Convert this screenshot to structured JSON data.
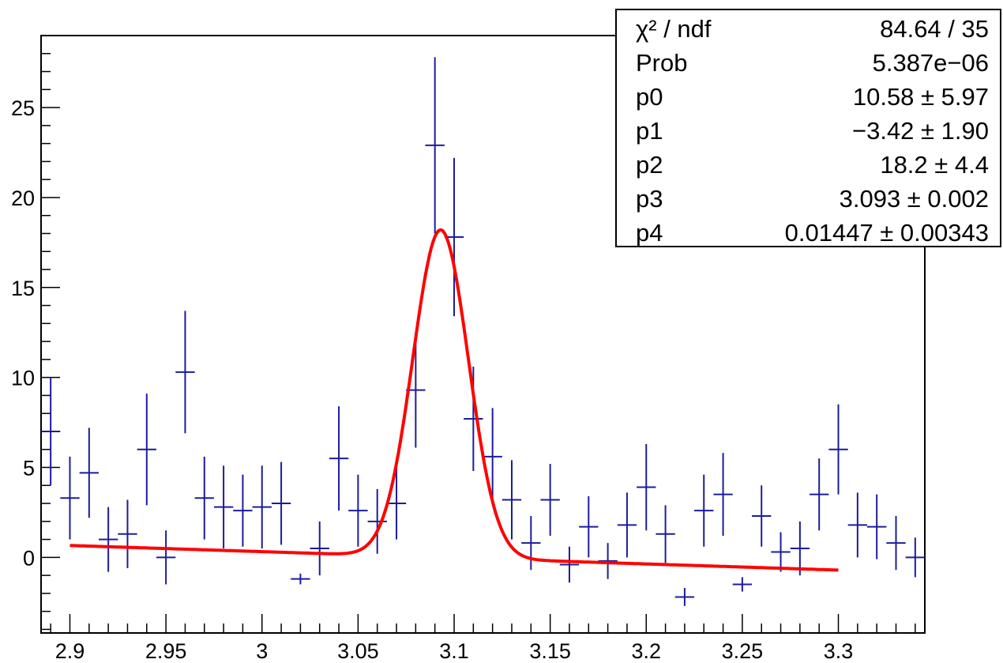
{
  "chart_data": {
    "type": "scatter",
    "title": "",
    "xlabel": "",
    "ylabel": "",
    "xlim": [
      2.885,
      3.345
    ],
    "ylim": [
      -4.2,
      29
    ],
    "x_ticks": [
      "2.9",
      "2.95",
      "3",
      "3.05",
      "3.1",
      "3.15",
      "3.2",
      "3.25",
      "3.3"
    ],
    "x_tick_values": [
      2.9,
      2.95,
      3.0,
      3.05,
      3.1,
      3.15,
      3.2,
      3.25,
      3.3
    ],
    "y_ticks": [
      "0",
      "5",
      "10",
      "15",
      "20",
      "25"
    ],
    "y_tick_values": [
      0,
      5,
      10,
      15,
      20,
      25
    ],
    "series": [
      {
        "kind": "data-with-errors",
        "color": "#1c1c9c",
        "bin_width": 0.01,
        "points": [
          {
            "x": 2.89,
            "y": 7.0,
            "err": 3.0
          },
          {
            "x": 2.9,
            "y": 3.3,
            "err": 2.3
          },
          {
            "x": 2.91,
            "y": 4.7,
            "err": 2.5
          },
          {
            "x": 2.92,
            "y": 1.0,
            "err": 1.8
          },
          {
            "x": 2.93,
            "y": 1.3,
            "err": 1.9
          },
          {
            "x": 2.94,
            "y": 6.0,
            "err": 3.1
          },
          {
            "x": 2.95,
            "y": 0.0,
            "err": 1.5
          },
          {
            "x": 2.96,
            "y": 10.3,
            "err": 3.4
          },
          {
            "x": 2.97,
            "y": 3.3,
            "err": 2.3
          },
          {
            "x": 2.98,
            "y": 2.8,
            "err": 2.3
          },
          {
            "x": 2.99,
            "y": 2.6,
            "err": 2.0
          },
          {
            "x": 3.0,
            "y": 2.8,
            "err": 2.3
          },
          {
            "x": 3.01,
            "y": 3.0,
            "err": 2.3
          },
          {
            "x": 3.02,
            "y": -1.2,
            "err": 0.3
          },
          {
            "x": 3.03,
            "y": 0.5,
            "err": 1.5
          },
          {
            "x": 3.04,
            "y": 5.5,
            "err": 2.9
          },
          {
            "x": 3.05,
            "y": 2.6,
            "err": 2.0
          },
          {
            "x": 3.06,
            "y": 2.0,
            "err": 1.8
          },
          {
            "x": 3.07,
            "y": 3.0,
            "err": 2.0
          },
          {
            "x": 3.08,
            "y": 9.3,
            "err": 3.2
          },
          {
            "x": 3.09,
            "y": 22.9,
            "err": 4.9
          },
          {
            "x": 3.1,
            "y": 17.8,
            "err": 4.4
          },
          {
            "x": 3.11,
            "y": 7.7,
            "err": 2.9
          },
          {
            "x": 3.12,
            "y": 5.6,
            "err": 2.7
          },
          {
            "x": 3.13,
            "y": 3.2,
            "err": 2.2
          },
          {
            "x": 3.14,
            "y": 0.8,
            "err": 1.5
          },
          {
            "x": 3.15,
            "y": 3.2,
            "err": 2.0
          },
          {
            "x": 3.16,
            "y": -0.4,
            "err": 1.0
          },
          {
            "x": 3.17,
            "y": 1.7,
            "err": 1.7
          },
          {
            "x": 3.18,
            "y": -0.2,
            "err": 1.0
          },
          {
            "x": 3.19,
            "y": 1.8,
            "err": 1.8
          },
          {
            "x": 3.2,
            "y": 3.9,
            "err": 2.4
          },
          {
            "x": 3.21,
            "y": 1.3,
            "err": 1.6
          },
          {
            "x": 3.22,
            "y": -2.2,
            "err": 0.5
          },
          {
            "x": 3.23,
            "y": 2.6,
            "err": 2.0
          },
          {
            "x": 3.24,
            "y": 3.5,
            "err": 2.3
          },
          {
            "x": 3.25,
            "y": -1.5,
            "err": 0.4
          },
          {
            "x": 3.26,
            "y": 2.3,
            "err": 1.7
          },
          {
            "x": 3.27,
            "y": 0.3,
            "err": 1.1
          },
          {
            "x": 3.28,
            "y": 0.5,
            "err": 1.5
          },
          {
            "x": 3.29,
            "y": 3.5,
            "err": 2.0
          },
          {
            "x": 3.3,
            "y": 6.0,
            "err": 2.5
          },
          {
            "x": 3.31,
            "y": 1.8,
            "err": 1.8
          },
          {
            "x": 3.32,
            "y": 1.7,
            "err": 1.8
          },
          {
            "x": 3.33,
            "y": 0.8,
            "err": 1.5
          },
          {
            "x": 3.34,
            "y": 0.0,
            "err": 1.1
          }
        ]
      },
      {
        "kind": "fit-line",
        "color": "#ff0000",
        "x_range": [
          2.9,
          3.3
        ],
        "function": "p0 + p1*x + p2*exp(-0.5*((x-p3)/p4)^2)",
        "params": {
          "p0": 10.58,
          "p1": -3.42,
          "p2": 18.2,
          "p3": 3.093,
          "p4": 0.01447
        }
      }
    ],
    "grid": false,
    "stats_box": {
      "position": "top-right",
      "rows": [
        {
          "name": "χ² / ndf",
          "value": "84.64 / 35"
        },
        {
          "name": "Prob",
          "value": "5.387e−06"
        },
        {
          "name": "p0",
          "value": "10.58 ± 5.97"
        },
        {
          "name": "p1",
          "value": "−3.42 ± 1.90"
        },
        {
          "name": "p2",
          "value": "18.2 ± 4.4"
        },
        {
          "name": "p3",
          "value": "3.093 ± 0.002"
        },
        {
          "name": "p4",
          "value": "0.01447 ± 0.00343"
        }
      ]
    }
  }
}
